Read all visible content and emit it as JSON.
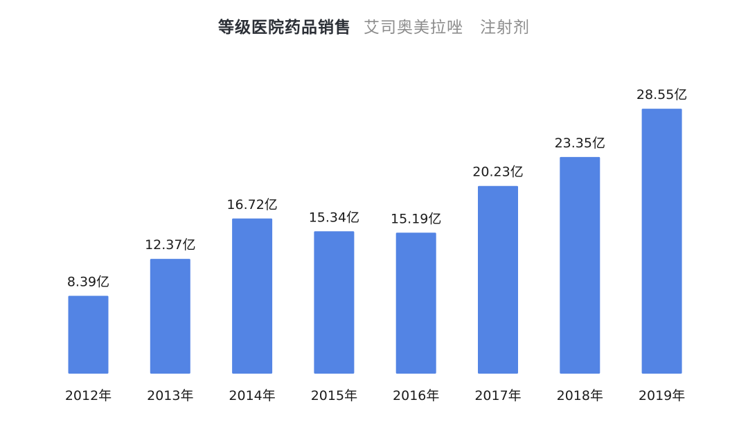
{
  "title": {
    "main": "等级医院药品销售",
    "drug": "艾司奥美拉唑",
    "form": "注射剂"
  },
  "chart_data": {
    "type": "bar",
    "categories": [
      "2012年",
      "2013年",
      "2014年",
      "2015年",
      "2016年",
      "2017年",
      "2018年",
      "2019年"
    ],
    "values": [
      8.39,
      12.37,
      16.72,
      15.34,
      15.19,
      20.23,
      23.35,
      28.55
    ],
    "data_labels": [
      "8.39亿",
      "12.37亿",
      "16.72亿",
      "15.34亿",
      "15.19亿",
      "20.23亿",
      "23.35亿",
      "28.55亿"
    ],
    "unit": "亿",
    "ylim": [
      0,
      30
    ],
    "grid": false,
    "bar_color": "#5384e4"
  }
}
